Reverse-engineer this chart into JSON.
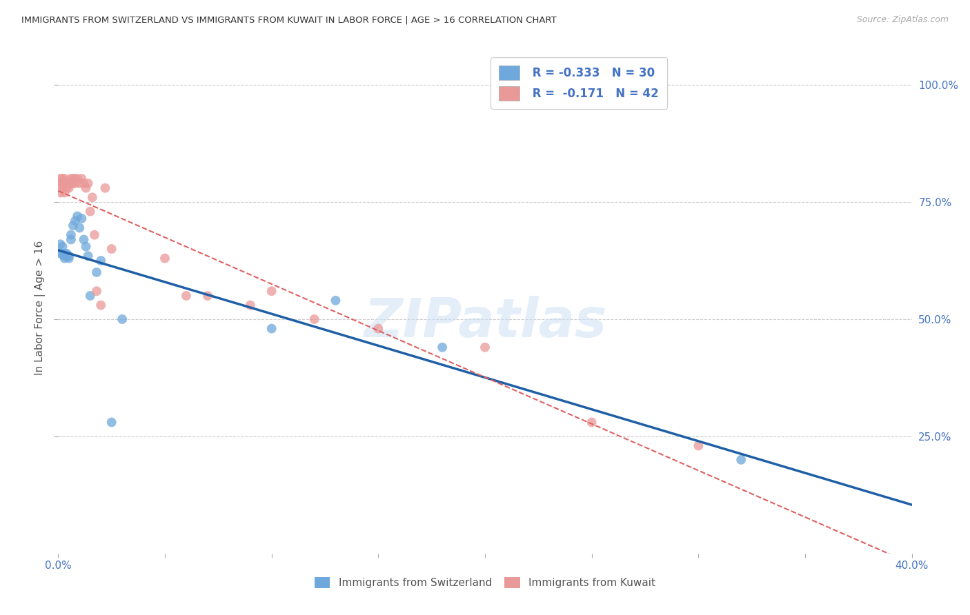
{
  "title": "IMMIGRANTS FROM SWITZERLAND VS IMMIGRANTS FROM KUWAIT IN LABOR FORCE | AGE > 16 CORRELATION CHART",
  "source": "Source: ZipAtlas.com",
  "ylabel": "In Labor Force | Age > 16",
  "xlim": [
    0.0,
    0.4
  ],
  "ylim": [
    0.0,
    1.05
  ],
  "yticks": [
    0.25,
    0.5,
    0.75,
    1.0
  ],
  "ytick_labels": [
    "25.0%",
    "50.0%",
    "75.0%",
    "100.0%"
  ],
  "background_color": "#ffffff",
  "watermark": "ZIPatlas",
  "legend_r_switzerland": "R = -0.333",
  "legend_n_switzerland": "N = 30",
  "legend_r_kuwait": "R =  -0.171",
  "legend_n_kuwait": "N = 42",
  "color_switzerland": "#6fa8dc",
  "color_kuwait": "#ea9999",
  "trendline_color_switzerland": "#1f5fa6",
  "trendline_color_kuwait": "#e06060",
  "swiss_x": [
    0.001,
    0.001,
    0.002,
    0.002,
    0.003,
    0.003,
    0.003,
    0.004,
    0.004,
    0.005,
    0.005,
    0.006,
    0.006,
    0.007,
    0.008,
    0.009,
    0.01,
    0.011,
    0.012,
    0.013,
    0.014,
    0.015,
    0.018,
    0.02,
    0.025,
    0.03,
    0.1,
    0.13,
    0.18,
    0.32
  ],
  "swiss_y": [
    0.64,
    0.66,
    0.655,
    0.64,
    0.64,
    0.635,
    0.63,
    0.64,
    0.635,
    0.635,
    0.63,
    0.67,
    0.68,
    0.7,
    0.71,
    0.72,
    0.695,
    0.715,
    0.67,
    0.655,
    0.635,
    0.55,
    0.6,
    0.625,
    0.28,
    0.5,
    0.48,
    0.54,
    0.44,
    0.2
  ],
  "kuwait_x": [
    0.001,
    0.001,
    0.001,
    0.002,
    0.002,
    0.002,
    0.003,
    0.003,
    0.003,
    0.004,
    0.004,
    0.005,
    0.005,
    0.006,
    0.006,
    0.007,
    0.007,
    0.008,
    0.008,
    0.009,
    0.01,
    0.011,
    0.012,
    0.013,
    0.014,
    0.015,
    0.016,
    0.017,
    0.018,
    0.02,
    0.022,
    0.025,
    0.05,
    0.06,
    0.07,
    0.09,
    0.1,
    0.12,
    0.15,
    0.2,
    0.25,
    0.3
  ],
  "kuwait_y": [
    0.79,
    0.8,
    0.77,
    0.79,
    0.78,
    0.8,
    0.8,
    0.79,
    0.77,
    0.79,
    0.78,
    0.78,
    0.79,
    0.8,
    0.79,
    0.8,
    0.79,
    0.79,
    0.8,
    0.8,
    0.79,
    0.8,
    0.79,
    0.78,
    0.79,
    0.73,
    0.76,
    0.68,
    0.56,
    0.53,
    0.78,
    0.65,
    0.63,
    0.55,
    0.55,
    0.53,
    0.56,
    0.5,
    0.48,
    0.44,
    0.28,
    0.23
  ]
}
